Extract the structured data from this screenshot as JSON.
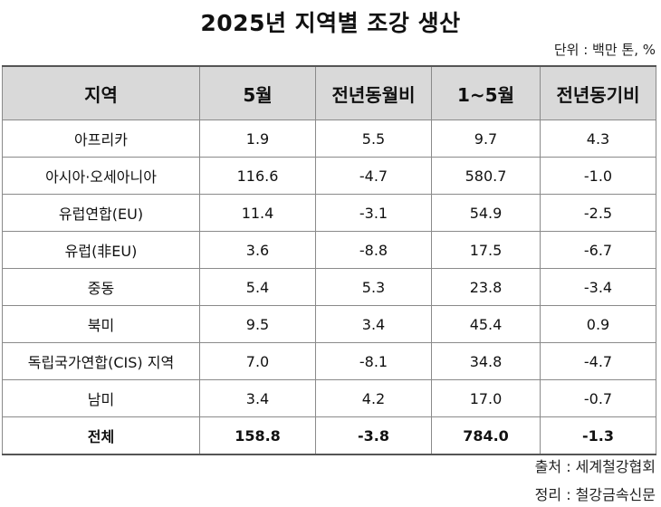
{
  "title": "2025년 지역별 조강 생산",
  "unit": "단위 : 백만 톤, %",
  "table": {
    "headers": [
      "지역",
      "5월",
      "전년동월비",
      "1~5월",
      "전년동기비"
    ],
    "rows": [
      [
        "아프리카",
        "1.9",
        "5.5",
        "9.7",
        "4.3"
      ],
      [
        "아시아·오세아니아",
        "116.6",
        "-4.7",
        "580.7",
        "-1.0"
      ],
      [
        "유럽연합(EU)",
        "11.4",
        "-3.1",
        "54.9",
        "-2.5"
      ],
      [
        "유럽(非EU)",
        "3.6",
        "-8.8",
        "17.5",
        "-6.7"
      ],
      [
        "중동",
        "5.4",
        "5.3",
        "23.8",
        "-3.4"
      ],
      [
        "북미",
        "9.5",
        "3.4",
        "45.4",
        "0.9"
      ],
      [
        "독립국가연합(CIS) 지역",
        "7.0",
        "-8.1",
        "34.8",
        "-4.7"
      ],
      [
        "남미",
        "3.4",
        "4.2",
        "17.0",
        "-0.7"
      ]
    ],
    "total": [
      "전체",
      "158.8",
      "-3.8",
      "784.0",
      "-1.3"
    ]
  },
  "source": "출처 : 세계철강협회",
  "editor": "정리 : 철강금속신문"
}
